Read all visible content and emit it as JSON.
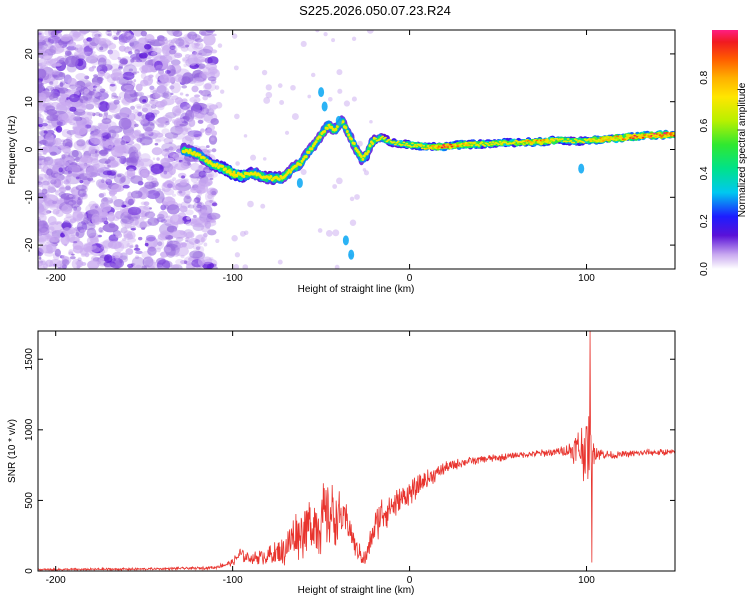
{
  "title": "S225.2026.050.07.23.R24",
  "colors": {
    "snr_line": "#e8342e",
    "blob_light": "#c9a9f0",
    "blob_mid": "#9466dd",
    "blob_dark": "#5a12d8"
  },
  "chart_data": [
    {
      "type": "heatmap",
      "name": "spectrogram",
      "xlabel": "Height of straight line (km)",
      "ylabel": "Frequency (Hz)",
      "xlim": [
        -210,
        150
      ],
      "ylim": [
        -25,
        25
      ],
      "xticks": [
        -200,
        -100,
        0,
        100
      ],
      "yticks": [
        -20,
        -10,
        0,
        10,
        20
      ],
      "xtick_labels": [
        "-200",
        "-100",
        "0",
        "100"
      ],
      "ytick_labels": [
        "-20",
        "-10",
        "0",
        "10",
        "20"
      ],
      "colorbar": {
        "label": "Normalized spectral amplitude",
        "range": [
          0,
          1
        ],
        "ticks": [
          0.0,
          0.2,
          0.4,
          0.6,
          0.8
        ],
        "tick_labels": [
          "0.0",
          "0.2",
          "0.4",
          "0.6",
          "0.8"
        ]
      },
      "ridge": {
        "x": [
          -128,
          -120,
          -112,
          -105,
          -100,
          -95,
          -88,
          -80,
          -72,
          -66,
          -62,
          -58,
          -54,
          -50,
          -46,
          -42,
          -38,
          -34,
          -30,
          -27,
          -24,
          -22,
          -20,
          -16,
          -10,
          0,
          10,
          20,
          30,
          45,
          60,
          75,
          85,
          95,
          105,
          115,
          125,
          135,
          150
        ],
        "freq": [
          0,
          -1,
          -3,
          -4,
          -5,
          -5.5,
          -5,
          -6,
          -6,
          -4,
          -3,
          -1,
          1,
          3,
          5,
          4,
          6,
          3,
          0,
          -2,
          -1,
          1,
          2,
          2.5,
          1.5,
          1,
          0.5,
          0.7,
          1,
          1.2,
          1.5,
          1.6,
          2,
          1.7,
          2,
          2.3,
          2.6,
          2.9,
          3.2
        ],
        "amp": [
          0.35,
          0.3,
          0.45,
          0.6,
          0.78,
          0.55,
          0.42,
          0.4,
          0.45,
          0.3,
          0.32,
          0.25,
          0.3,
          0.32,
          0.3,
          0.34,
          0.3,
          0.28,
          0.3,
          0.35,
          0.5,
          0.4,
          0.4,
          0.35,
          0.45,
          0.55,
          0.75,
          0.9,
          0.8,
          0.6,
          0.7,
          0.85,
          0.6,
          0.45,
          0.8,
          0.85,
          0.9,
          0.92,
          0.95
        ]
      }
    },
    {
      "type": "line",
      "name": "snr",
      "xlabel": "Height of straight line (km)",
      "ylabel": "SNR (10 * v/v)",
      "xlim": [
        -210,
        150
      ],
      "ylim": [
        0,
        1700
      ],
      "xticks": [
        -200,
        -100,
        0,
        100
      ],
      "yticks": [
        0,
        500,
        1000,
        1500
      ],
      "xtick_labels": [
        "-200",
        "-100",
        "0",
        "100"
      ],
      "ytick_labels": [
        "0",
        "500",
        "1000",
        "1500"
      ],
      "envelope": {
        "x": [
          -210,
          -180,
          -150,
          -120,
          -110,
          -100,
          -96,
          -90,
          -80,
          -72,
          -65,
          -58,
          -52,
          -45,
          -40,
          -35,
          -30,
          -25,
          -20,
          -15,
          -10,
          -5,
          0,
          10,
          20,
          30,
          40,
          50,
          60,
          70,
          80,
          88,
          92,
          96,
          100,
          102,
          104,
          108,
          115,
          125,
          135,
          150
        ],
        "y": [
          10,
          12,
          14,
          20,
          25,
          60,
          120,
          90,
          110,
          130,
          250,
          300,
          350,
          400,
          380,
          350,
          150,
          80,
          300,
          420,
          460,
          500,
          550,
          650,
          730,
          770,
          790,
          800,
          820,
          830,
          840,
          850,
          860,
          860,
          860,
          860,
          850,
          830,
          820,
          830,
          840,
          840
        ],
        "noise": [
          6,
          8,
          8,
          10,
          12,
          25,
          60,
          40,
          70,
          110,
          180,
          220,
          260,
          250,
          200,
          120,
          80,
          60,
          120,
          150,
          120,
          100,
          90,
          70,
          45,
          35,
          30,
          28,
          25,
          25,
          30,
          40,
          90,
          180,
          260,
          260,
          100,
          40,
          25,
          25,
          25,
          25
        ]
      }
    }
  ]
}
